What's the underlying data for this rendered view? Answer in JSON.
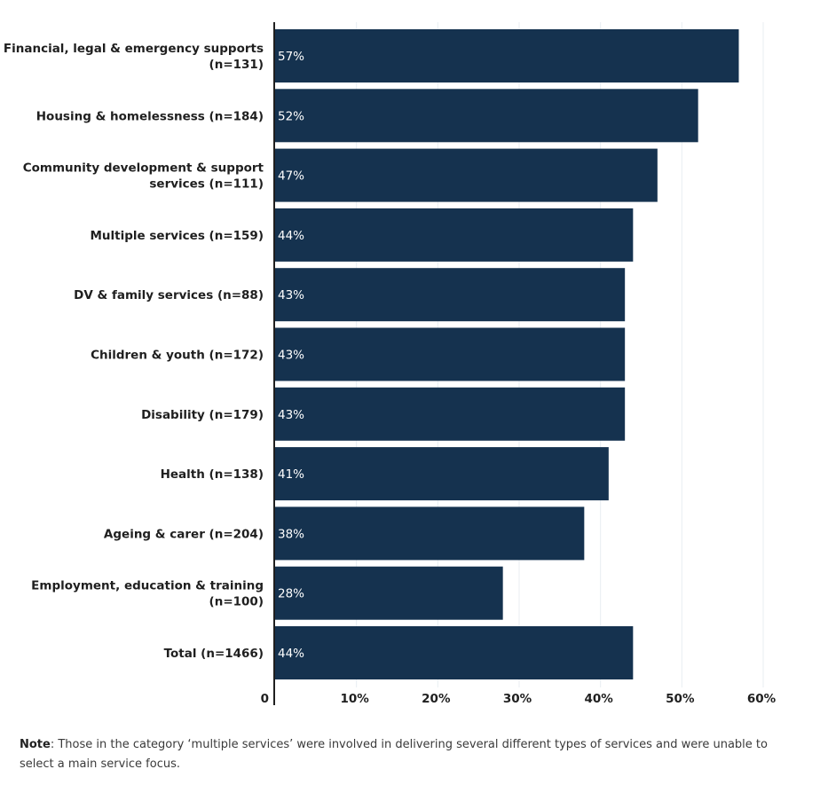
{
  "chart_data": {
    "type": "bar",
    "orientation": "horizontal",
    "categories": [
      [
        "Financial, legal & emergency supports",
        "(n=131)"
      ],
      [
        "Housing & homelessness (n=184)"
      ],
      [
        "Community development & support",
        "services (n=111)"
      ],
      [
        "Multiple services (n=159)"
      ],
      [
        "DV & family services (n=88)"
      ],
      [
        "Children & youth (n=172)"
      ],
      [
        "Disability (n=179)"
      ],
      [
        "Health (n=138)"
      ],
      [
        "Ageing & carer (n=204)"
      ],
      [
        "Employment, education & training",
        "(n=100)"
      ],
      [
        "Total (n=1466)"
      ]
    ],
    "values": [
      57,
      52,
      47,
      44,
      43,
      43,
      43,
      41,
      38,
      28,
      44
    ],
    "value_labels": [
      "57%",
      "52%",
      "47%",
      "44%",
      "43%",
      "43%",
      "43%",
      "41%",
      "38%",
      "28%",
      "44%"
    ],
    "xlim": [
      0,
      60
    ],
    "ticks": [
      {
        "value": 0,
        "label": "0"
      },
      {
        "value": 10,
        "label": "10%"
      },
      {
        "value": 20,
        "label": "20%"
      },
      {
        "value": 30,
        "label": "30%"
      },
      {
        "value": 40,
        "label": "40%"
      },
      {
        "value": 50,
        "label": "50%"
      },
      {
        "value": 60,
        "label": "60%"
      }
    ],
    "grid": true,
    "bar_color": "#15324f",
    "grid_color": "#e8eef2"
  },
  "note": {
    "label": "Note",
    "text": ": Those in the category ‘multiple services’ were involved in delivering several different types of services and were unable to select a main service focus."
  }
}
